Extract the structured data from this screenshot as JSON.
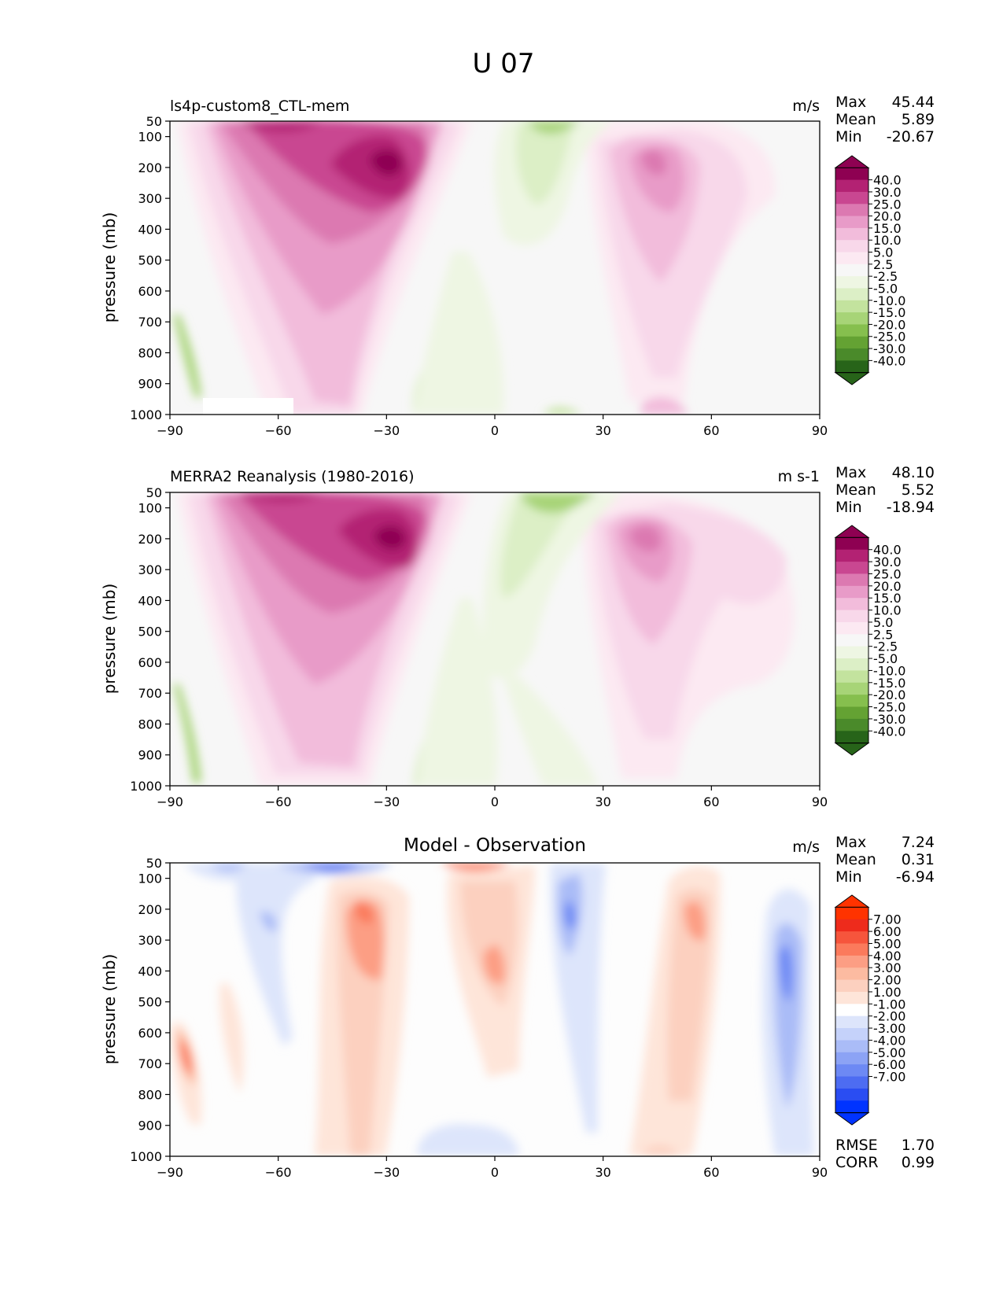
{
  "suptitle": "U 07",
  "common": {
    "ylabel": "pressure (mb)",
    "xticks": [
      "−90",
      "−60",
      "−30",
      "0",
      "30",
      "60",
      "90"
    ],
    "yticks": [
      "50",
      "100",
      "200",
      "300",
      "400",
      "500",
      "600",
      "700",
      "800",
      "900",
      "1000"
    ],
    "stat_labels": {
      "max": "Max",
      "mean": "Mean",
      "min": "Min",
      "rmse": "RMSE",
      "corr": "CORR"
    }
  },
  "colors": {
    "zero_band": "#f7f7f7",
    "pink": [
      "#fce9f2",
      "#f8d8ea",
      "#f2bcdb",
      "#e89bc8",
      "#dc79b1",
      "#c94791",
      "#b32273",
      "#8e0152"
    ],
    "green": [
      "#eef6e3",
      "#dcefc6",
      "#c3e39e",
      "#a7d477",
      "#86bf4e",
      "#64a233",
      "#4a8a2a",
      "#276419"
    ],
    "diff_red": [
      "#fee5d9",
      "#fcd0bf",
      "#fcbba1",
      "#fc9e84",
      "#fb7a5c",
      "#f6553c",
      "#ee2b1c",
      "#ff3300"
    ],
    "diff_blue": [
      "#dde5fb",
      "#c5d2fa",
      "#aabcf7",
      "#8ca3f5",
      "#6d89f4",
      "#4d6cf2",
      "#2a4df2",
      "#0033ff"
    ]
  },
  "chart_data": [
    {
      "type": "contour",
      "title": "ls4p-custom8_CTL-mem",
      "units": "m/s",
      "xlabel": "",
      "ylabel": "pressure (mb)",
      "xlim": [
        -90,
        90
      ],
      "ylim": [
        1000,
        50
      ],
      "colorbar_levels": [
        "40.0",
        "30.0",
        "25.0",
        "20.0",
        "15.0",
        "10.0",
        "5.0",
        "2.5",
        "-2.5",
        "-5.0",
        "-10.0",
        "-15.0",
        "-20.0",
        "-25.0",
        "-30.0",
        "-40.0"
      ],
      "stats": {
        "max": "45.44",
        "mean": "5.89",
        "min": "-20.67"
      }
    },
    {
      "type": "contour",
      "title": "MERRA2 Reanalysis (1980-2016)",
      "units": "m s-1",
      "xlabel": "",
      "ylabel": "pressure (mb)",
      "xlim": [
        -90,
        90
      ],
      "ylim": [
        1000,
        50
      ],
      "colorbar_levels": [
        "40.0",
        "30.0",
        "25.0",
        "20.0",
        "15.0",
        "10.0",
        "5.0",
        "2.5",
        "-2.5",
        "-5.0",
        "-10.0",
        "-15.0",
        "-20.0",
        "-25.0",
        "-30.0",
        "-40.0"
      ],
      "stats": {
        "max": "48.10",
        "mean": "5.52",
        "min": "-18.94"
      }
    },
    {
      "type": "contour",
      "title": "Model - Observation",
      "units": "m/s",
      "xlabel": "",
      "ylabel": "pressure (mb)",
      "xlim": [
        -90,
        90
      ],
      "ylim": [
        1000,
        50
      ],
      "colorbar_levels": [
        "7.00",
        "6.00",
        "5.00",
        "4.00",
        "3.00",
        "2.00",
        "1.00",
        "-1.00",
        "-2.00",
        "-3.00",
        "-4.00",
        "-5.00",
        "-6.00",
        "-7.00"
      ],
      "stats": {
        "max": "7.24",
        "mean": "0.31",
        "min": "-6.94",
        "rmse": "1.70",
        "corr": "0.99"
      }
    }
  ]
}
